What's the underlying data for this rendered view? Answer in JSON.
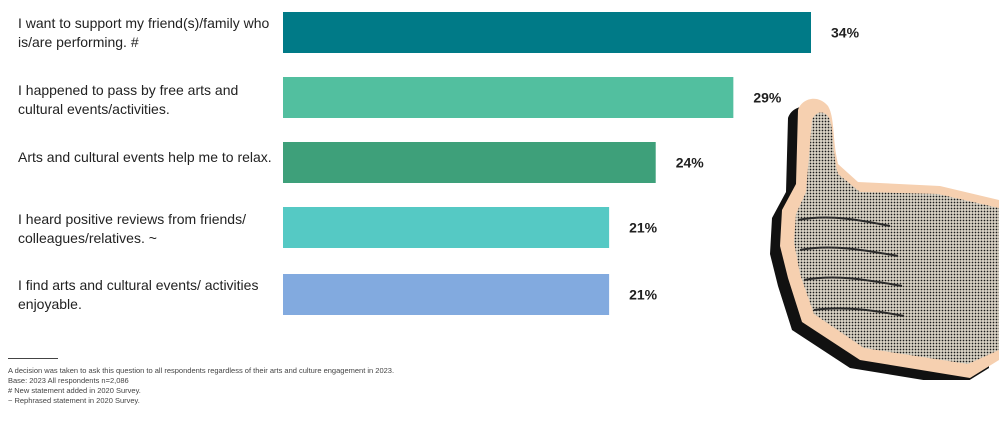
{
  "chart_data": {
    "type": "bar",
    "orientation": "horizontal",
    "categories": [
      "I want to support my friend(s)/family who is/are performing. #",
      "I happened to pass by free arts and cultural events/activities.",
      "Arts and cultural events help me to relax.",
      "I heard positive reviews from friends/ colleagues/relatives. ~",
      "I find arts and cultural events/ activities enjoyable."
    ],
    "values": [
      34,
      29,
      24,
      21,
      21
    ],
    "value_labels": [
      "34%",
      "29%",
      "24%",
      "21%",
      "21%"
    ],
    "colors": [
      "#007a87",
      "#52bf9f",
      "#3ea07a",
      "#55c9c4",
      "#82aadf"
    ],
    "title": "",
    "xlabel": "",
    "ylabel": "",
    "xlim": [
      0,
      34
    ],
    "grid": false,
    "legend": "none"
  },
  "footnotes": {
    "decision": "A decision was taken to ask this question to all respondents regardless of their arts and culture engagement in 2023.",
    "base": "Base: 2023 All respondents n=2,086",
    "new_statement": "# New statement added in 2020 Survey.",
    "rephrased": "~ Rephrased statement in 2020 Survey."
  },
  "decoration": {
    "image": "thumbs-up-hand"
  }
}
